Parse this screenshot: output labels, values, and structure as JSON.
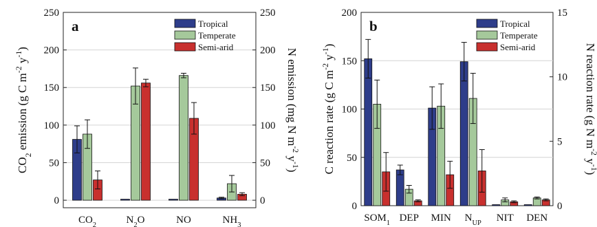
{
  "chart_data": [
    {
      "type": "bar",
      "panel_label": "a",
      "categories": [
        "CO2",
        "N2O",
        "NO",
        "NH3"
      ],
      "category_labels": [
        {
          "base": "CO",
          "sub": "2"
        },
        {
          "base": "N",
          "sub": "2",
          "tail": "O"
        },
        {
          "base": "NO"
        },
        {
          "base": "NH",
          "sub": "3"
        }
      ],
      "series": [
        {
          "name": "Tropical",
          "values": [
            81,
            0,
            0,
            3
          ],
          "errors": [
            18,
            0,
            0,
            1
          ]
        },
        {
          "name": "Temperate",
          "values": [
            88,
            152,
            166,
            22
          ],
          "errors": [
            19,
            24,
            3,
            11
          ]
        },
        {
          "name": "Semi-arid",
          "values": [
            27,
            156,
            109,
            8
          ],
          "errors": [
            12,
            5,
            21,
            2
          ]
        }
      ],
      "ylabel_left": {
        "parts": [
          [
            "CO",
            ""
          ],
          [
            "2",
            "sub"
          ],
          [
            " emission (g C m",
            ""
          ],
          [
            "-2",
            "sup"
          ],
          [
            " y",
            ""
          ],
          [
            "-1",
            "sup"
          ],
          [
            ")",
            ""
          ]
        ]
      },
      "ylabel_right": {
        "parts": [
          [
            "N emission (mg N m",
            ""
          ],
          [
            "-2",
            "sup"
          ],
          [
            " y",
            ""
          ],
          [
            "-1",
            "sup"
          ],
          [
            ")",
            ""
          ]
        ]
      },
      "ylim_left": [
        -10,
        250
      ],
      "yticks_left": [
        0,
        50,
        100,
        150,
        200,
        250
      ],
      "yticks_right": [
        0,
        50,
        100,
        150,
        200,
        250
      ],
      "grid": true,
      "legend_position": "top-right"
    },
    {
      "type": "bar",
      "panel_label": "b",
      "categories": [
        "SOM1",
        "DEP",
        "MIN",
        "NUP",
        "NIT",
        "DEN"
      ],
      "category_labels": [
        {
          "base": "SOM",
          "sub": "1"
        },
        {
          "base": "DEP"
        },
        {
          "base": "MIN"
        },
        {
          "base": "N",
          "sub": "UP"
        },
        {
          "base": "NIT"
        },
        {
          "base": "DEN"
        }
      ],
      "series": [
        {
          "name": "Tropical",
          "values": [
            152,
            37,
            101,
            149,
            0,
            0
          ],
          "errors": [
            20,
            5,
            22,
            20,
            0,
            0
          ]
        },
        {
          "name": "Temperate",
          "values": [
            105,
            17,
            103,
            111,
            6,
            8
          ],
          "errors": [
            25,
            4,
            23,
            26,
            2,
            1
          ]
        },
        {
          "name": "Semi-arid",
          "values": [
            35,
            5,
            32,
            36,
            4,
            6
          ],
          "errors": [
            20,
            1,
            14,
            22,
            1,
            1
          ]
        }
      ],
      "ylabel_left": {
        "parts": [
          [
            "C reaction rate (g C m",
            ""
          ],
          [
            "-2",
            "sup"
          ],
          [
            " y",
            ""
          ],
          [
            "-1",
            "sup"
          ],
          [
            ")",
            ""
          ]
        ]
      },
      "ylabel_right": {
        "parts": [
          [
            "N reaction rate (g N m",
            ""
          ],
          [
            "-2",
            "sup"
          ],
          [
            " y",
            ""
          ],
          [
            "-1",
            "sup"
          ],
          [
            ")",
            ""
          ]
        ]
      },
      "ylim_left": [
        0,
        200
      ],
      "yticks_left": [
        0,
        50,
        100,
        150,
        200
      ],
      "ylim_right": [
        0,
        15
      ],
      "yticks_right": [
        0,
        5,
        10,
        15
      ],
      "grid": true,
      "legend_position": "top-right"
    }
  ],
  "colors": {
    "Tropical": "#2e3d8a",
    "Temperate": "#a5c99b",
    "Semi-arid": "#c8302e"
  }
}
